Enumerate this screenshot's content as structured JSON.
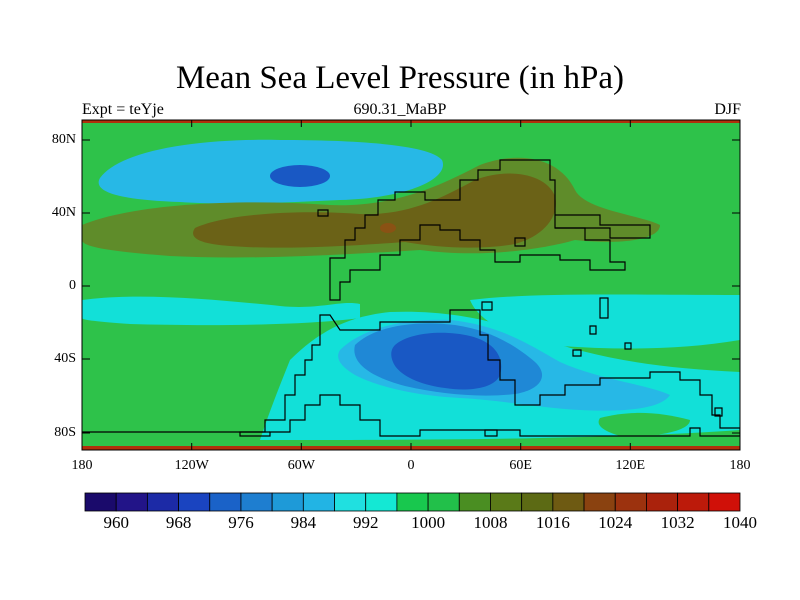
{
  "title": "Mean Sea Level Pressure (in hPa)",
  "subtitle_left": "Expt = teYje",
  "subtitle_center": "690.31_MaBP",
  "subtitle_right": "DJF",
  "lat_labels": [
    "80N",
    "40N",
    "0",
    "40S",
    "80S"
  ],
  "lon_labels": [
    "180",
    "120W",
    "60W",
    "0",
    "60E",
    "120E",
    "180"
  ],
  "colorbar": {
    "labels": [
      "960",
      "968",
      "976",
      "984",
      "992",
      "1000",
      "1008",
      "1016",
      "1024",
      "1032",
      "1040"
    ],
    "colors": [
      "#1a0a6b",
      "#221488",
      "#1c2aa6",
      "#1a44c0",
      "#1a62c8",
      "#1e7ed0",
      "#1e9ad8",
      "#22b4e4",
      "#20e0e0",
      "#14e8d4",
      "#18c84e",
      "#22c04a",
      "#4a8e22",
      "#5a7a18",
      "#5c6a14",
      "#6e5a12",
      "#8a4210",
      "#9c320e",
      "#aa220c",
      "#bc1a0a",
      "#d01008"
    ]
  },
  "fields": {
    "background": "#2ec24a",
    "cyan": "#12e0d8",
    "light_blue": "#27b8e6",
    "mid_blue": "#1f88d6",
    "deep_blue": "#1958c4",
    "olive": "#5f8c2a",
    "brown": "#6b6217",
    "dark_brown": "#8a5214",
    "edge_red": "#b0300c"
  }
}
